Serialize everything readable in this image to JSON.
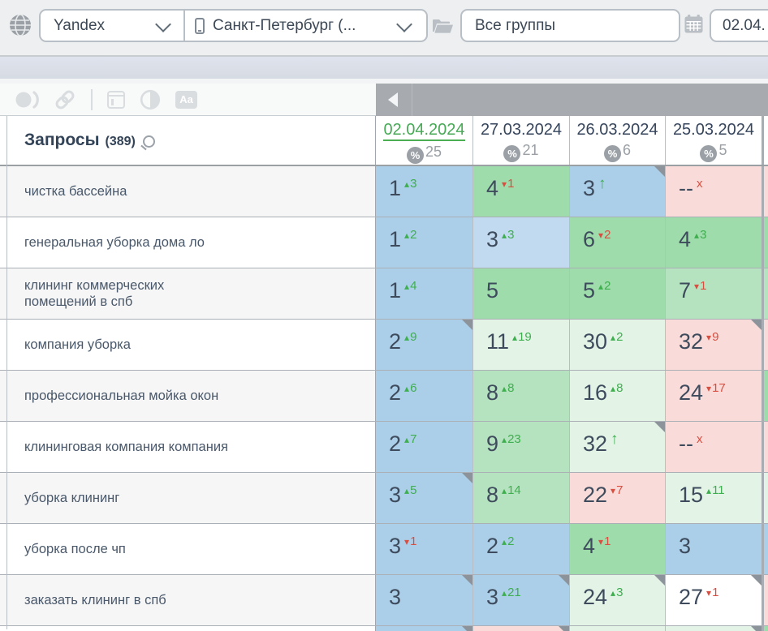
{
  "topbar": {
    "search_engine": "Yandex",
    "region": "Санкт-Петербург (...",
    "groups": "Все группы",
    "date_from": "02.04."
  },
  "colors": {
    "top3_blue": "#abcfe9",
    "top10_green": "#9fdcab",
    "mid_green": "#b6e3bf",
    "low_green": "#e3f4e7",
    "dropped_pink": "#f9dcd9",
    "up_green_text": "#3eae4f",
    "down_red_text": "#d84f42",
    "active_date_green": "#47a956",
    "position_text": "#3e4b5d"
  },
  "table": {
    "header": {
      "keywords_label": "Запросы",
      "keywords_count": "(389)",
      "columns": [
        {
          "date": "02.04.2024",
          "percent": "25",
          "active": true
        },
        {
          "date": "27.03.2024",
          "percent": "21",
          "active": false
        },
        {
          "date": "26.03.2024",
          "percent": "6",
          "active": false
        },
        {
          "date": "25.03.2024",
          "percent": "5",
          "active": false
        }
      ]
    },
    "rows": [
      {
        "keyword": "чистка бассейна",
        "alt": true,
        "sliver": "pink",
        "cells": [
          {
            "value": "1",
            "bg": "blue",
            "dir": "up",
            "chg": "3"
          },
          {
            "value": "4",
            "bg": "green1",
            "dir": "down",
            "chg": "1"
          },
          {
            "value": "3",
            "bg": "blue",
            "dir": "uparrow",
            "corner": true
          },
          {
            "value": "--",
            "bg": "pink",
            "dir": "lost"
          }
        ]
      },
      {
        "keyword": "генеральная уборка дома ло",
        "alt": false,
        "sliver": "green1",
        "cells": [
          {
            "value": "1",
            "bg": "blue",
            "dir": "up",
            "chg": "2"
          },
          {
            "value": "3",
            "bg": "blue2",
            "dir": "up",
            "chg": "3"
          },
          {
            "value": "6",
            "bg": "green1",
            "dir": "down",
            "chg": "2"
          },
          {
            "value": "4",
            "bg": "green1",
            "dir": "up",
            "chg": "3"
          }
        ]
      },
      {
        "keyword": "клининг коммерческих\nпомещений в спб",
        "alt": true,
        "sliver": "green2",
        "cells": [
          {
            "value": "1",
            "bg": "blue",
            "dir": "up",
            "chg": "4"
          },
          {
            "value": "5",
            "bg": "green1",
            "dir": "none"
          },
          {
            "value": "5",
            "bg": "green1",
            "dir": "up",
            "chg": "2"
          },
          {
            "value": "7",
            "bg": "green2",
            "dir": "down",
            "chg": "1"
          }
        ]
      },
      {
        "keyword": "компания уборка",
        "alt": false,
        "sliver": "pink",
        "cells": [
          {
            "value": "2",
            "bg": "blue",
            "dir": "up",
            "chg": "9",
            "corner": true
          },
          {
            "value": "11",
            "bg": "green3",
            "dir": "up",
            "chg": "19"
          },
          {
            "value": "30",
            "bg": "green3",
            "dir": "up",
            "chg": "2"
          },
          {
            "value": "32",
            "bg": "pink",
            "dir": "down",
            "chg": "9",
            "corner": true
          }
        ]
      },
      {
        "keyword": "профессиональная мойка окон",
        "alt": true,
        "sliver": "green1",
        "cells": [
          {
            "value": "2",
            "bg": "blue",
            "dir": "up",
            "chg": "6"
          },
          {
            "value": "8",
            "bg": "green2",
            "dir": "up",
            "chg": "8"
          },
          {
            "value": "16",
            "bg": "green3",
            "dir": "up",
            "chg": "8"
          },
          {
            "value": "24",
            "bg": "pink",
            "dir": "down",
            "chg": "17"
          }
        ]
      },
      {
        "keyword": "клининговая компания компания",
        "alt": false,
        "sliver": "pink",
        "cells": [
          {
            "value": "2",
            "bg": "blue",
            "dir": "up",
            "chg": "7"
          },
          {
            "value": "9",
            "bg": "green2",
            "dir": "up",
            "chg": "23"
          },
          {
            "value": "32",
            "bg": "green3",
            "dir": "uparrow",
            "corner": true
          },
          {
            "value": "--",
            "bg": "pink",
            "dir": "lost"
          }
        ]
      },
      {
        "keyword": "уборка клининг",
        "alt": true,
        "sliver": "green3",
        "cells": [
          {
            "value": "3",
            "bg": "blue",
            "dir": "up",
            "chg": "5",
            "corner": true
          },
          {
            "value": "8",
            "bg": "green2",
            "dir": "up",
            "chg": "14"
          },
          {
            "value": "22",
            "bg": "pink",
            "dir": "down",
            "chg": "7"
          },
          {
            "value": "15",
            "bg": "green3",
            "dir": "up",
            "chg": "11"
          }
        ]
      },
      {
        "keyword": "уборка после чп",
        "alt": false,
        "sliver": "blue",
        "cells": [
          {
            "value": "3",
            "bg": "blue",
            "dir": "down",
            "chg": "1"
          },
          {
            "value": "2",
            "bg": "blue",
            "dir": "up",
            "chg": "2"
          },
          {
            "value": "4",
            "bg": "green1",
            "dir": "down",
            "chg": "1"
          },
          {
            "value": "3",
            "bg": "blue",
            "dir": "none"
          }
        ]
      },
      {
        "keyword": "заказать клининг в спб",
        "alt": true,
        "sliver": "pink",
        "cells": [
          {
            "value": "3",
            "bg": "blue",
            "dir": "none",
            "corner": true
          },
          {
            "value": "3",
            "bg": "blue",
            "dir": "up",
            "chg": "21",
            "corner": true
          },
          {
            "value": "24",
            "bg": "green3",
            "dir": "up",
            "chg": "3",
            "corner": true
          },
          {
            "value": "27",
            "bg": "white",
            "dir": "down",
            "chg": "1",
            "corner": true
          }
        ]
      },
      {
        "keyword": "",
        "alt": false,
        "partial": true,
        "sliver": "green1",
        "cells": [
          {
            "value": "",
            "bg": "blue",
            "dir": "none",
            "corner": true
          },
          {
            "value": "",
            "bg": "pink",
            "dir": "none",
            "corner": true
          },
          {
            "value": "",
            "bg": "green3",
            "dir": "none"
          },
          {
            "value": "",
            "bg": "green3",
            "dir": "none",
            "corner": true
          }
        ]
      }
    ]
  }
}
